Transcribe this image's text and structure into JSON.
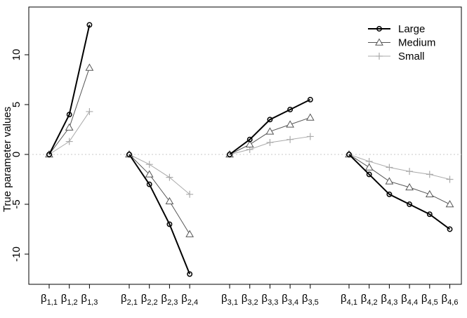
{
  "chart_data": {
    "type": "line",
    "ylabel": "True parameter values",
    "ylim": [
      -12.5,
      13.5
    ],
    "yticks": [
      -10,
      -5,
      0,
      5,
      10
    ],
    "reference_line_y": 0,
    "legend_position": "top-right",
    "legend": [
      "Large",
      "Medium",
      "Small"
    ],
    "groups": [
      {
        "name": "beta1",
        "labels": [
          [
            "1,1"
          ],
          [
            "1,2"
          ],
          [
            "1,3"
          ]
        ],
        "tick_labels": [
          "β1,1",
          "β1,2",
          "β1,3"
        ],
        "series": [
          {
            "name": "Large",
            "values": [
              0,
              4.0,
              13.0
            ]
          },
          {
            "name": "Medium",
            "values": [
              0,
              2.7,
              8.7
            ]
          },
          {
            "name": "Small",
            "values": [
              0,
              1.3,
              4.3
            ]
          }
        ]
      },
      {
        "name": "beta2",
        "tick_labels": [
          "β2,1",
          "β2,2",
          "β2,3",
          "β2,4"
        ],
        "series": [
          {
            "name": "Large",
            "values": [
              0,
              -3.0,
              -7.0,
              -12.0
            ]
          },
          {
            "name": "Medium",
            "values": [
              0,
              -2.0,
              -4.7,
              -8.0
            ]
          },
          {
            "name": "Small",
            "values": [
              0,
              -1.0,
              -2.3,
              -4.0
            ]
          }
        ]
      },
      {
        "name": "beta3",
        "tick_labels": [
          "β3,1",
          "β3,2",
          "β3,3",
          "β3,4",
          "β3,5"
        ],
        "series": [
          {
            "name": "Large",
            "values": [
              0,
              1.5,
              3.5,
              4.5,
              5.5
            ]
          },
          {
            "name": "Medium",
            "values": [
              0,
              1.0,
              2.3,
              3.0,
              3.7
            ]
          },
          {
            "name": "Small",
            "values": [
              0,
              0.5,
              1.2,
              1.5,
              1.8
            ]
          }
        ]
      },
      {
        "name": "beta4",
        "tick_labels": [
          "β4,1",
          "β4,2",
          "β4,3",
          "β4,4",
          "β4,5",
          "β4,6"
        ],
        "series": [
          {
            "name": "Large",
            "values": [
              0,
              -2.0,
              -4.0,
              -5.0,
              -6.0,
              -7.5
            ]
          },
          {
            "name": "Medium",
            "values": [
              0,
              -1.3,
              -2.7,
              -3.3,
              -4.0,
              -5.0
            ]
          },
          {
            "name": "Small",
            "values": [
              0,
              -0.7,
              -1.3,
              -1.7,
              -2.0,
              -2.5
            ]
          }
        ]
      }
    ],
    "series_style": {
      "Large": {
        "color": "#000000",
        "marker": "circle"
      },
      "Medium": {
        "color": "#555555",
        "marker": "triangle"
      },
      "Small": {
        "color": "#aaaaaa",
        "marker": "plus"
      }
    },
    "reference_line_color": "#c8c8c8"
  }
}
